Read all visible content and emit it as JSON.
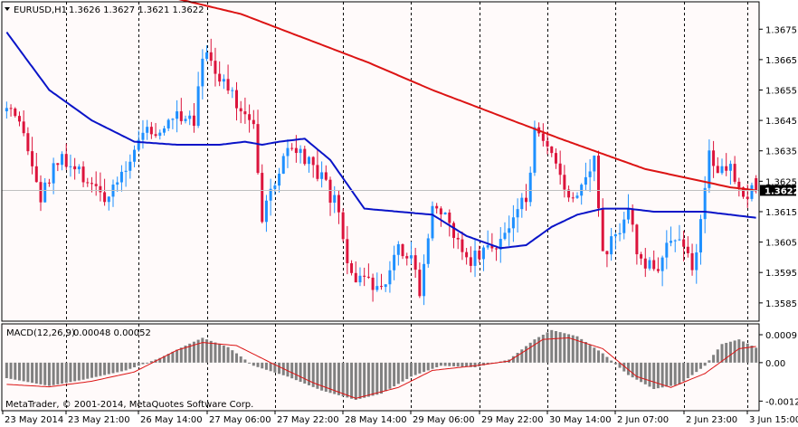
{
  "window": {
    "main_header": {
      "symbol": "EURUSD,H1",
      "ohlc": "1.3626 1.3627 1.3621 1.3622"
    },
    "sub_header": {
      "indicator": "MACD(12,26,9)",
      "values": "0.00048 0.00052"
    },
    "copyright": "MetaTrader, © 2001-2014, MetaQuotes Software Corp."
  },
  "colors": {
    "background": "#fffafa",
    "grid": "#000000",
    "bull_candle": "#1e90ff",
    "bear_candle": "#dc143c",
    "ma_slow": "#dc1414",
    "ma_fast": "#0a14c8",
    "macd_hist": "#808080",
    "macd_signal": "#dc1414",
    "price_tag": "#000000"
  },
  "chart_data": [
    {
      "type": "candlestick",
      "panel": "price",
      "symbol": "EURUSD",
      "timeframe": "H1",
      "last_ohlc": {
        "open": 1.3626,
        "high": 1.3627,
        "low": 1.3621,
        "close": 1.3622
      },
      "last_price_label": "1.3622",
      "ylim": [
        1.3579,
        1.3684
      ],
      "y_ticks": [
        "1.3675",
        "1.3665",
        "1.3655",
        "1.3645",
        "1.3635",
        "1.3625",
        "1.3615",
        "1.3605",
        "1.3595",
        "1.3585"
      ],
      "x_tick_labels": [
        "23 May 2014",
        "23 May 21:00",
        "26 May 14:00",
        "27 May 06:00",
        "27 May 22:00",
        "28 May 14:00",
        "29 May 06:00",
        "29 May 22:00",
        "30 May 14:00",
        "2 Jun 07:00",
        "2 Jun 23:00",
        "3 Jun 15:00"
      ],
      "close_path": [
        [
          0,
          1.3648
        ],
        [
          4,
          1.364
        ],
        [
          8,
          1.3619
        ],
        [
          12,
          1.3632
        ],
        [
          16,
          1.3628
        ],
        [
          20,
          1.3625
        ],
        [
          24,
          1.3618
        ],
        [
          28,
          1.363
        ],
        [
          32,
          1.3642
        ],
        [
          36,
          1.364
        ],
        [
          40,
          1.3648
        ],
        [
          44,
          1.3646
        ],
        [
          46,
          1.3668
        ],
        [
          50,
          1.366
        ],
        [
          54,
          1.365
        ],
        [
          58,
          1.3646
        ],
        [
          60,
          1.3612
        ],
        [
          63,
          1.3625
        ],
        [
          66,
          1.3635
        ],
        [
          70,
          1.3632
        ],
        [
          74,
          1.3625
        ],
        [
          78,
          1.3615
        ],
        [
          80,
          1.3597
        ],
        [
          83,
          1.3592
        ],
        [
          86,
          1.359
        ],
        [
          89,
          1.3594
        ],
        [
          92,
          1.3605
        ],
        [
          95,
          1.36
        ],
        [
          97,
          1.359
        ],
        [
          100,
          1.3618
        ],
        [
          103,
          1.3612
        ],
        [
          106,
          1.3605
        ],
        [
          109,
          1.36
        ],
        [
          112,
          1.3602
        ],
        [
          116,
          1.3606
        ],
        [
          119,
          1.3612
        ],
        [
          122,
          1.362
        ],
        [
          124,
          1.364
        ],
        [
          127,
          1.3635
        ],
        [
          130,
          1.3625
        ],
        [
          133,
          1.362
        ],
        [
          136,
          1.3628
        ],
        [
          138,
          1.3633
        ],
        [
          140,
          1.36
        ],
        [
          143,
          1.3607
        ],
        [
          146,
          1.3618
        ],
        [
          148,
          1.36
        ],
        [
          150,
          1.3596
        ],
        [
          153,
          1.3598
        ],
        [
          156,
          1.3604
        ],
        [
          159,
          1.3606
        ],
        [
          161,
          1.3595
        ],
        [
          163,
          1.3612
        ],
        [
          165,
          1.3635
        ],
        [
          167,
          1.3628
        ],
        [
          170,
          1.363
        ],
        [
          173,
          1.3622
        ],
        [
          176,
          1.3622
        ]
      ],
      "ma_slow": [
        [
          0,
          1.369
        ],
        [
          20,
          1.3688
        ],
        [
          40,
          1.3685
        ],
        [
          55,
          1.368
        ],
        [
          70,
          1.3672
        ],
        [
          85,
          1.3664
        ],
        [
          100,
          1.3655
        ],
        [
          115,
          1.3647
        ],
        [
          130,
          1.3639
        ],
        [
          140,
          1.3634
        ],
        [
          150,
          1.3629
        ],
        [
          160,
          1.3626
        ],
        [
          170,
          1.3623
        ],
        [
          176,
          1.3622
        ]
      ],
      "ma_fast": [
        [
          0,
          1.3674
        ],
        [
          10,
          1.3655
        ],
        [
          20,
          1.3645
        ],
        [
          30,
          1.3638
        ],
        [
          40,
          1.3637
        ],
        [
          50,
          1.3637
        ],
        [
          56,
          1.3638
        ],
        [
          60,
          1.3637
        ],
        [
          64,
          1.3638
        ],
        [
          70,
          1.3639
        ],
        [
          76,
          1.3632
        ],
        [
          84,
          1.3616
        ],
        [
          92,
          1.3615
        ],
        [
          100,
          1.3614
        ],
        [
          108,
          1.3607
        ],
        [
          116,
          1.3603
        ],
        [
          122,
          1.3604
        ],
        [
          128,
          1.361
        ],
        [
          134,
          1.3614
        ],
        [
          140,
          1.3616
        ],
        [
          146,
          1.3616
        ],
        [
          152,
          1.3615
        ],
        [
          158,
          1.3615
        ],
        [
          164,
          1.3615
        ],
        [
          170,
          1.3614
        ],
        [
          176,
          1.3613
        ]
      ]
    },
    {
      "type": "bar",
      "panel": "macd",
      "name": "MACD(12,26,9)",
      "values_label": "0.00048 0.00052",
      "main": 0.00048,
      "signal": 0.00052,
      "ylim": [
        -0.00155,
        0.00125
      ],
      "y_ticks": [
        "0.0009",
        "0.00",
        "-0.00124"
      ],
      "hist_path": [
        [
          0,
          -0.0005
        ],
        [
          10,
          -0.00075
        ],
        [
          18,
          -0.00055
        ],
        [
          28,
          -0.00025
        ],
        [
          36,
          0.00015
        ],
        [
          42,
          0.00055
        ],
        [
          46,
          0.0008
        ],
        [
          52,
          0.0005
        ],
        [
          58,
          -0.0001
        ],
        [
          66,
          -0.00045
        ],
        [
          74,
          -0.0009
        ],
        [
          82,
          -0.0012
        ],
        [
          88,
          -0.001
        ],
        [
          95,
          -0.00045
        ],
        [
          102,
          -0.0001
        ],
        [
          110,
          -0.00015
        ],
        [
          118,
          0.0001
        ],
        [
          124,
          0.00075
        ],
        [
          128,
          0.00105
        ],
        [
          134,
          0.00085
        ],
        [
          140,
          0.0003
        ],
        [
          146,
          -0.0004
        ],
        [
          152,
          -0.00085
        ],
        [
          158,
          -0.0007
        ],
        [
          164,
          -0.0001
        ],
        [
          168,
          0.0006
        ],
        [
          172,
          0.00075
        ],
        [
          176,
          0.00048
        ]
      ],
      "signal_path": [
        [
          0,
          -0.0007
        ],
        [
          10,
          -0.00078
        ],
        [
          20,
          -0.0006
        ],
        [
          30,
          -0.0003
        ],
        [
          40,
          0.0004
        ],
        [
          46,
          0.00065
        ],
        [
          54,
          0.00055
        ],
        [
          62,
          0.0
        ],
        [
          72,
          -0.00065
        ],
        [
          82,
          -0.00115
        ],
        [
          92,
          -0.0008
        ],
        [
          100,
          -0.00025
        ],
        [
          110,
          -0.0001
        ],
        [
          118,
          5e-05
        ],
        [
          126,
          0.00075
        ],
        [
          132,
          0.0008
        ],
        [
          140,
          0.00045
        ],
        [
          148,
          -0.00045
        ],
        [
          156,
          -0.0008
        ],
        [
          164,
          -0.00035
        ],
        [
          172,
          0.00045
        ],
        [
          176,
          0.00052
        ]
      ]
    }
  ]
}
